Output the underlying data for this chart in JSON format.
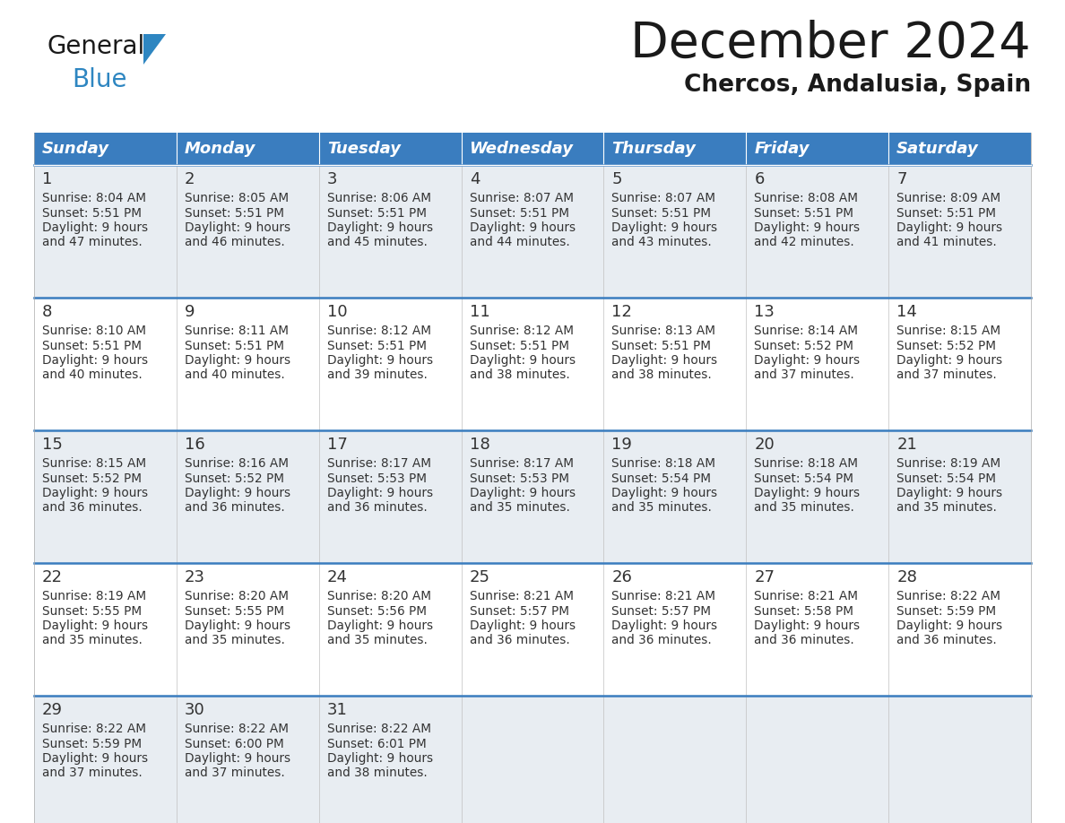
{
  "title": "December 2024",
  "subtitle": "Chercos, Andalusia, Spain",
  "header_bg": "#3a7dbf",
  "header_text_color": "#ffffff",
  "border_color": "#3a7dbf",
  "row_bg": [
    "#e8edf2",
    "#ffffff",
    "#e8edf2",
    "#ffffff",
    "#e8edf2"
  ],
  "text_color": "#333333",
  "days_of_week": [
    "Sunday",
    "Monday",
    "Tuesday",
    "Wednesday",
    "Thursday",
    "Friday",
    "Saturday"
  ],
  "calendar": [
    [
      {
        "day": "1",
        "sunrise": "8:04 AM",
        "sunset": "5:51 PM",
        "daylight_line1": "Daylight: 9 hours",
        "daylight_line2": "and 47 minutes."
      },
      {
        "day": "2",
        "sunrise": "8:05 AM",
        "sunset": "5:51 PM",
        "daylight_line1": "Daylight: 9 hours",
        "daylight_line2": "and 46 minutes."
      },
      {
        "day": "3",
        "sunrise": "8:06 AM",
        "sunset": "5:51 PM",
        "daylight_line1": "Daylight: 9 hours",
        "daylight_line2": "and 45 minutes."
      },
      {
        "day": "4",
        "sunrise": "8:07 AM",
        "sunset": "5:51 PM",
        "daylight_line1": "Daylight: 9 hours",
        "daylight_line2": "and 44 minutes."
      },
      {
        "day": "5",
        "sunrise": "8:07 AM",
        "sunset": "5:51 PM",
        "daylight_line1": "Daylight: 9 hours",
        "daylight_line2": "and 43 minutes."
      },
      {
        "day": "6",
        "sunrise": "8:08 AM",
        "sunset": "5:51 PM",
        "daylight_line1": "Daylight: 9 hours",
        "daylight_line2": "and 42 minutes."
      },
      {
        "day": "7",
        "sunrise": "8:09 AM",
        "sunset": "5:51 PM",
        "daylight_line1": "Daylight: 9 hours",
        "daylight_line2": "and 41 minutes."
      }
    ],
    [
      {
        "day": "8",
        "sunrise": "8:10 AM",
        "sunset": "5:51 PM",
        "daylight_line1": "Daylight: 9 hours",
        "daylight_line2": "and 40 minutes."
      },
      {
        "day": "9",
        "sunrise": "8:11 AM",
        "sunset": "5:51 PM",
        "daylight_line1": "Daylight: 9 hours",
        "daylight_line2": "and 40 minutes."
      },
      {
        "day": "10",
        "sunrise": "8:12 AM",
        "sunset": "5:51 PM",
        "daylight_line1": "Daylight: 9 hours",
        "daylight_line2": "and 39 minutes."
      },
      {
        "day": "11",
        "sunrise": "8:12 AM",
        "sunset": "5:51 PM",
        "daylight_line1": "Daylight: 9 hours",
        "daylight_line2": "and 38 minutes."
      },
      {
        "day": "12",
        "sunrise": "8:13 AM",
        "sunset": "5:51 PM",
        "daylight_line1": "Daylight: 9 hours",
        "daylight_line2": "and 38 minutes."
      },
      {
        "day": "13",
        "sunrise": "8:14 AM",
        "sunset": "5:52 PM",
        "daylight_line1": "Daylight: 9 hours",
        "daylight_line2": "and 37 minutes."
      },
      {
        "day": "14",
        "sunrise": "8:15 AM",
        "sunset": "5:52 PM",
        "daylight_line1": "Daylight: 9 hours",
        "daylight_line2": "and 37 minutes."
      }
    ],
    [
      {
        "day": "15",
        "sunrise": "8:15 AM",
        "sunset": "5:52 PM",
        "daylight_line1": "Daylight: 9 hours",
        "daylight_line2": "and 36 minutes."
      },
      {
        "day": "16",
        "sunrise": "8:16 AM",
        "sunset": "5:52 PM",
        "daylight_line1": "Daylight: 9 hours",
        "daylight_line2": "and 36 minutes."
      },
      {
        "day": "17",
        "sunrise": "8:17 AM",
        "sunset": "5:53 PM",
        "daylight_line1": "Daylight: 9 hours",
        "daylight_line2": "and 36 minutes."
      },
      {
        "day": "18",
        "sunrise": "8:17 AM",
        "sunset": "5:53 PM",
        "daylight_line1": "Daylight: 9 hours",
        "daylight_line2": "and 35 minutes."
      },
      {
        "day": "19",
        "sunrise": "8:18 AM",
        "sunset": "5:54 PM",
        "daylight_line1": "Daylight: 9 hours",
        "daylight_line2": "and 35 minutes."
      },
      {
        "day": "20",
        "sunrise": "8:18 AM",
        "sunset": "5:54 PM",
        "daylight_line1": "Daylight: 9 hours",
        "daylight_line2": "and 35 minutes."
      },
      {
        "day": "21",
        "sunrise": "8:19 AM",
        "sunset": "5:54 PM",
        "daylight_line1": "Daylight: 9 hours",
        "daylight_line2": "and 35 minutes."
      }
    ],
    [
      {
        "day": "22",
        "sunrise": "8:19 AM",
        "sunset": "5:55 PM",
        "daylight_line1": "Daylight: 9 hours",
        "daylight_line2": "and 35 minutes."
      },
      {
        "day": "23",
        "sunrise": "8:20 AM",
        "sunset": "5:55 PM",
        "daylight_line1": "Daylight: 9 hours",
        "daylight_line2": "and 35 minutes."
      },
      {
        "day": "24",
        "sunrise": "8:20 AM",
        "sunset": "5:56 PM",
        "daylight_line1": "Daylight: 9 hours",
        "daylight_line2": "and 35 minutes."
      },
      {
        "day": "25",
        "sunrise": "8:21 AM",
        "sunset": "5:57 PM",
        "daylight_line1": "Daylight: 9 hours",
        "daylight_line2": "and 36 minutes."
      },
      {
        "day": "26",
        "sunrise": "8:21 AM",
        "sunset": "5:57 PM",
        "daylight_line1": "Daylight: 9 hours",
        "daylight_line2": "and 36 minutes."
      },
      {
        "day": "27",
        "sunrise": "8:21 AM",
        "sunset": "5:58 PM",
        "daylight_line1": "Daylight: 9 hours",
        "daylight_line2": "and 36 minutes."
      },
      {
        "day": "28",
        "sunrise": "8:22 AM",
        "sunset": "5:59 PM",
        "daylight_line1": "Daylight: 9 hours",
        "daylight_line2": "and 36 minutes."
      }
    ],
    [
      {
        "day": "29",
        "sunrise": "8:22 AM",
        "sunset": "5:59 PM",
        "daylight_line1": "Daylight: 9 hours",
        "daylight_line2": "and 37 minutes."
      },
      {
        "day": "30",
        "sunrise": "8:22 AM",
        "sunset": "6:00 PM",
        "daylight_line1": "Daylight: 9 hours",
        "daylight_line2": "and 37 minutes."
      },
      {
        "day": "31",
        "sunrise": "8:22 AM",
        "sunset": "6:01 PM",
        "daylight_line1": "Daylight: 9 hours",
        "daylight_line2": "and 38 minutes."
      },
      null,
      null,
      null,
      null
    ]
  ],
  "logo_general_color": "#1a1a1a",
  "logo_blue_color": "#2e86c1",
  "logo_triangle_color": "#2e86c1",
  "fig_width": 11.88,
  "fig_height": 9.18,
  "dpi": 100
}
